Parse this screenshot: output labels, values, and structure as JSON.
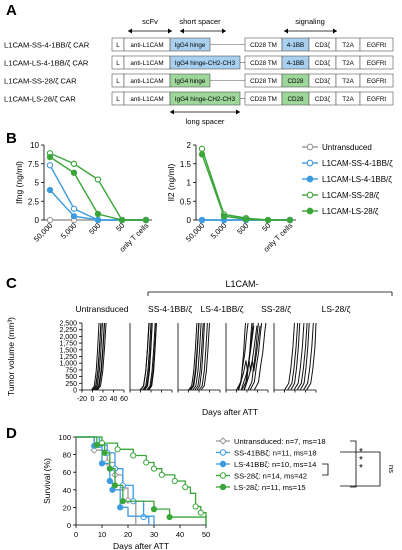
{
  "panels": {
    "A": "A",
    "B": "B",
    "C": "C",
    "D": "D"
  },
  "panelA": {
    "header_scfv": "scFv",
    "header_short_spacer": "short spacer",
    "header_signaling": "signaling",
    "long_spacer_label": "long spacer",
    "constructs": [
      {
        "name": "L1CAM-SS-4-1BB/ζ CAR",
        "segments": [
          "L",
          "anti-L1CAM",
          "IgG4 hinge",
          "CD28 TM",
          "4-1BB",
          "CD3ζ",
          "T2A",
          "EGFRt"
        ],
        "spacer": "short",
        "costim": "4-1BB"
      },
      {
        "name": "L1CAM-LS-4-1BB/ζ CAR",
        "segments": [
          "L",
          "anti-L1CAM",
          "IgG4 hinge-CH2-CH3",
          "CD28 TM",
          "4-1BB",
          "CD3ζ",
          "T2A",
          "EGFRt"
        ],
        "spacer": "long",
        "costim": "4-1BB"
      },
      {
        "name": "L1CAM-SS-28/ζ CAR",
        "segments": [
          "L",
          "anti-L1CAM",
          "IgG4 hinge",
          "CD28 TM",
          "CD28",
          "CD3ζ",
          "T2A",
          "EGFRt"
        ],
        "spacer": "short",
        "costim": "CD28"
      },
      {
        "name": "L1CAM-LS-28/ζ CAR",
        "segments": [
          "L",
          "anti-L1CAM",
          "IgG4 hinge-CH2-CH3",
          "CD28 TM",
          "CD28",
          "CD3ζ",
          "T2A",
          "EGFRt"
        ],
        "spacer": "long",
        "costim": "CD28"
      }
    ]
  },
  "colors": {
    "blue": "#3d9be0",
    "blue_fill": "#a9d0ee",
    "green": "#3aa63a",
    "green_fill": "#9ed79a",
    "grey": "#9a9a9a",
    "black": "#111111"
  },
  "chart_data": [
    {
      "type": "line",
      "id": "ifng",
      "ylabel": "Ifng (ng/ml)",
      "ylim": [
        0,
        10
      ],
      "yticks": [
        "0",
        "2.5",
        "5",
        "7.5",
        "10"
      ],
      "categories": [
        "50,000",
        "5,000",
        "500",
        "50",
        "only T cells"
      ],
      "series": [
        {
          "name": "Untransduced",
          "values": [
            0,
            0,
            0,
            0,
            0
          ]
        },
        {
          "name": "L1CAM-SS-4-1BB/ζ",
          "values": [
            7.3,
            1.5,
            0,
            0,
            0
          ]
        },
        {
          "name": "L1CAM-LS-4-1BB/ζ",
          "values": [
            4.0,
            0.5,
            0,
            0,
            0
          ]
        },
        {
          "name": "L1CAM-SS-28/ζ",
          "values": [
            8.9,
            7.5,
            5.4,
            0,
            0
          ]
        },
        {
          "name": "L1CAM-LS-28/ζ",
          "values": [
            8.4,
            6.3,
            0.8,
            0,
            0
          ]
        }
      ]
    },
    {
      "type": "line",
      "id": "il2",
      "ylabel": "Il2 (ng/ml)",
      "ylim": [
        0,
        2
      ],
      "yticks": [
        "0",
        "0.5",
        "1",
        "1.5",
        "2"
      ],
      "categories": [
        "50,000",
        "5,000",
        "500",
        "50",
        "only T cells"
      ],
      "series": [
        {
          "name": "Untransduced",
          "values": [
            0,
            0,
            0,
            0,
            0
          ]
        },
        {
          "name": "L1CAM-SS-4-1BB/ζ",
          "values": [
            0,
            0,
            0,
            0,
            0
          ]
        },
        {
          "name": "L1CAM-LS-4-1BB/ζ",
          "values": [
            0,
            0,
            0,
            0,
            0
          ]
        },
        {
          "name": "L1CAM-SS-28/ζ",
          "values": [
            1.9,
            0.15,
            0.05,
            0,
            0
          ]
        },
        {
          "name": "L1CAM-LS-28/ζ",
          "values": [
            1.75,
            0.1,
            0.02,
            0,
            0
          ]
        }
      ]
    },
    {
      "type": "line",
      "id": "tumor",
      "ylabel": "Tumor volume (mm³)",
      "xlabel": "Days after ATT",
      "ylim": [
        0,
        2500
      ],
      "yticks": [
        "0",
        "250",
        "500",
        "750",
        "1,000",
        "1,250",
        "1,500",
        "1,750",
        "2,000",
        "2,250",
        "2,500"
      ],
      "group_header": "L1CAM-",
      "groups": [
        {
          "label": "Untransduced",
          "xticks": [
            "-20",
            "0",
            "20",
            "40",
            "60"
          ]
        },
        {
          "label": "SS-4-1BB/ζ"
        },
        {
          "label": "LS-4-1BB/ζ"
        },
        {
          "label": "SS-28/ζ"
        },
        {
          "label": "LS-28/ζ"
        }
      ]
    },
    {
      "type": "line",
      "id": "survival",
      "ylabel": "Survival (%)",
      "xlabel": "Days after ATT",
      "ylim": [
        0,
        100
      ],
      "yticks": [
        "0",
        "20",
        "40",
        "60",
        "80",
        "100"
      ],
      "xticks": [
        "0",
        "10",
        "20",
        "30",
        "40",
        "50"
      ],
      "series": [
        {
          "name": "Untransduced: n=7, ms=18"
        },
        {
          "name": "SS-41BBζ: n=11, ms=18"
        },
        {
          "name": "LS-41BBζ: n=10, ms=14"
        },
        {
          "name": "SS-28ζ: n=14, ms=42"
        },
        {
          "name": "LS-28ζ: n=11, ms=15"
        }
      ],
      "significance": {
        "stars": [
          "*",
          "*",
          "*"
        ],
        "ns": "ns"
      }
    }
  ]
}
